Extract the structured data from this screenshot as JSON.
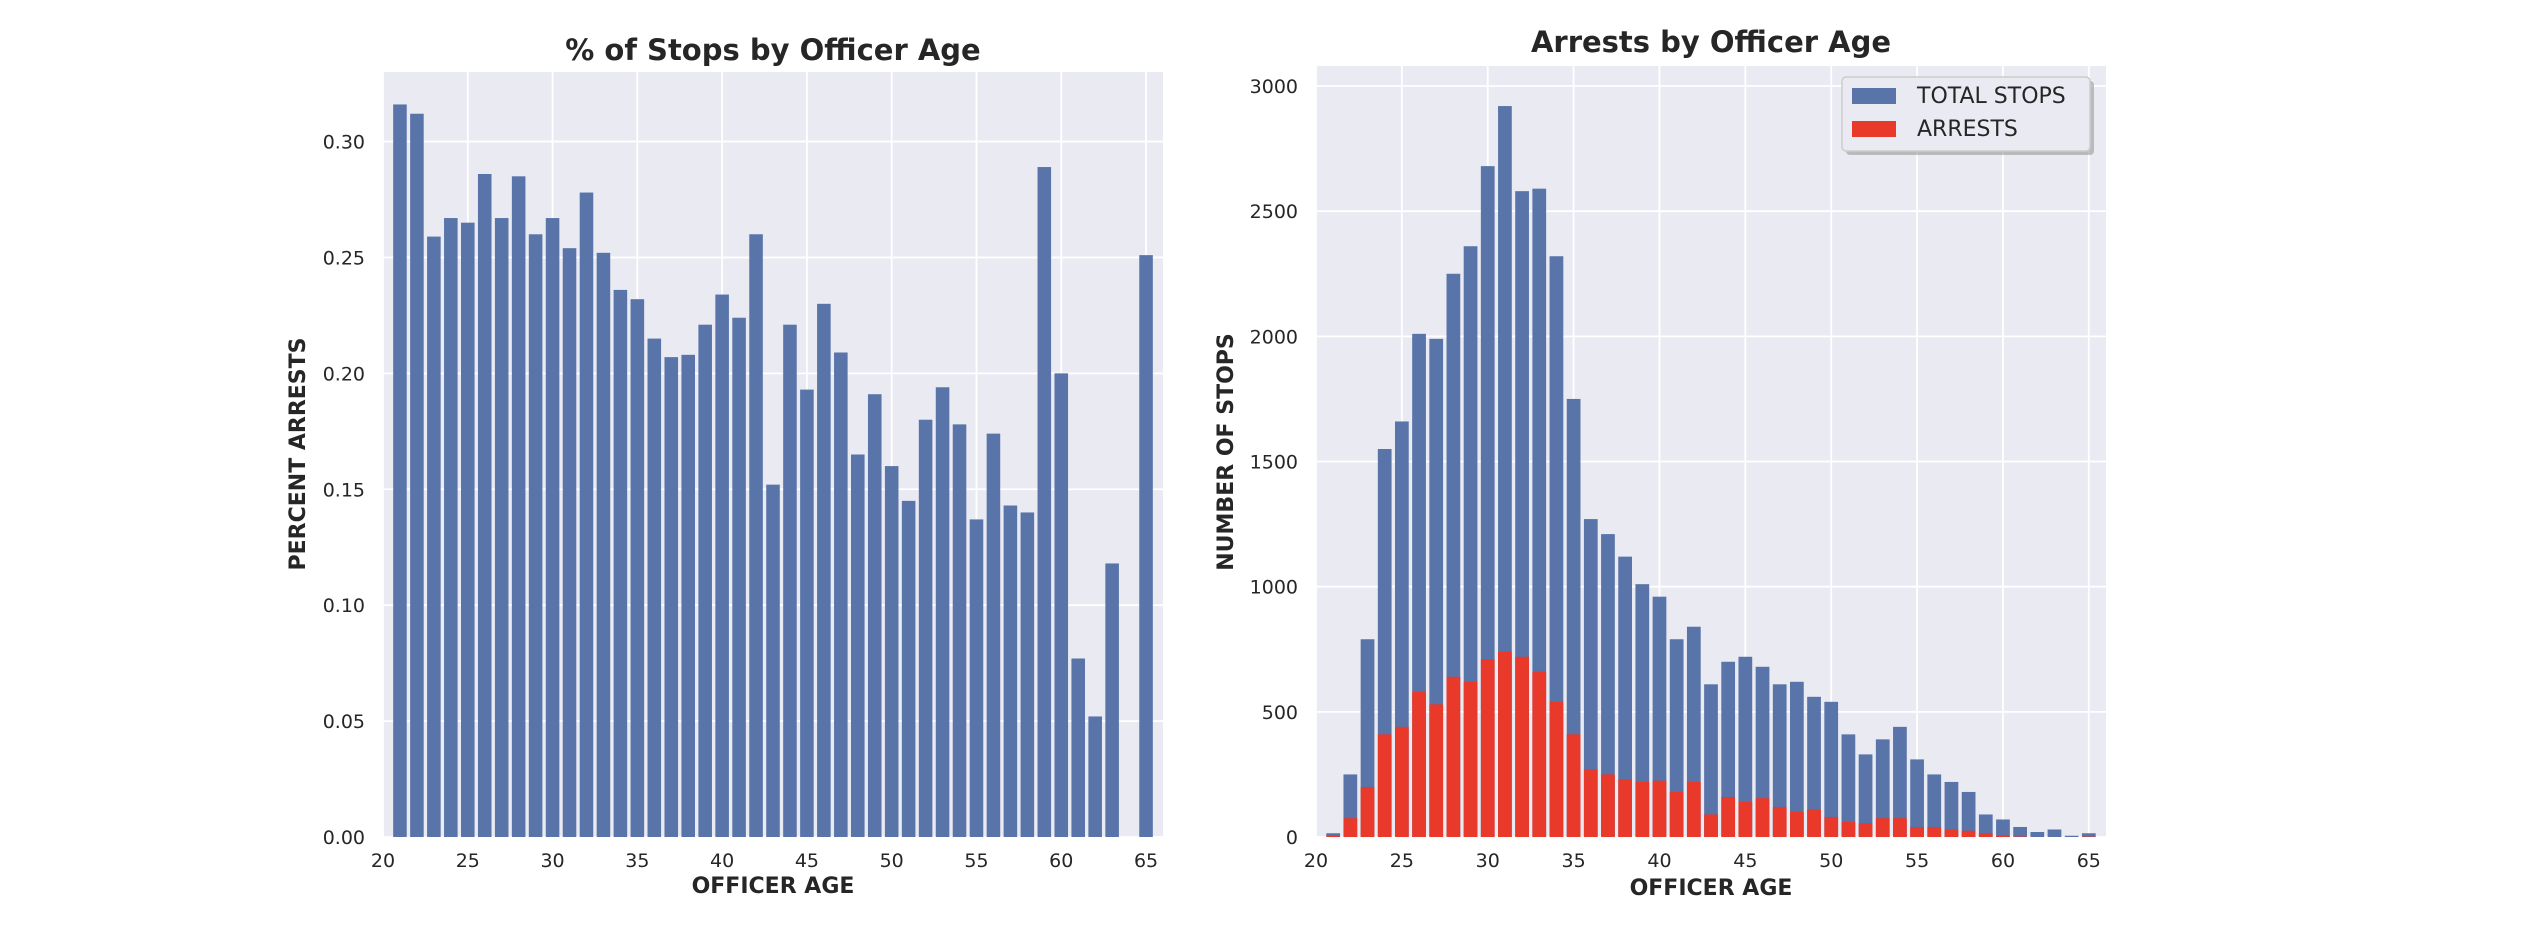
{
  "chart_data": [
    {
      "type": "bar",
      "title": "% of Stops by Officer Age",
      "xlabel": "OFFICER AGE",
      "ylabel": "PERCENT ARRESTS",
      "xlim": [
        20,
        66
      ],
      "ylim": [
        0,
        0.33
      ],
      "xticks": [
        20,
        25,
        30,
        35,
        40,
        45,
        50,
        55,
        60,
        65
      ],
      "xtick_labels": [
        "20",
        "25",
        "30",
        "35",
        "40",
        "45",
        "50",
        "55",
        "60",
        "65"
      ],
      "yticks": [
        0.0,
        0.05,
        0.1,
        0.15,
        0.2,
        0.25,
        0.3
      ],
      "ytick_labels": [
        "0.00",
        "0.05",
        "0.10",
        "0.15",
        "0.20",
        "0.25",
        "0.30"
      ],
      "grid": true,
      "bar_color": "#5874a8",
      "x": [
        21,
        22,
        23,
        24,
        25,
        26,
        27,
        28,
        29,
        30,
        31,
        32,
        33,
        34,
        35,
        36,
        37,
        38,
        39,
        40,
        41,
        42,
        43,
        44,
        45,
        46,
        47,
        48,
        49,
        50,
        51,
        52,
        53,
        54,
        55,
        56,
        57,
        58,
        59,
        60,
        61,
        62,
        63,
        65
      ],
      "values": [
        0.316,
        0.312,
        0.259,
        0.267,
        0.265,
        0.286,
        0.267,
        0.285,
        0.26,
        0.267,
        0.254,
        0.278,
        0.252,
        0.236,
        0.232,
        0.215,
        0.207,
        0.208,
        0.221,
        0.234,
        0.224,
        0.26,
        0.152,
        0.221,
        0.193,
        0.23,
        0.209,
        0.165,
        0.191,
        0.16,
        0.145,
        0.18,
        0.194,
        0.178,
        0.137,
        0.174,
        0.143,
        0.14,
        0.289,
        0.2,
        0.077,
        0.052,
        0.118,
        0.251
      ]
    },
    {
      "type": "bar",
      "title": "Arrests by Officer Age",
      "xlabel": "OFFICER AGE",
      "ylabel": "NUMBER OF STOPS",
      "xlim": [
        20,
        66
      ],
      "ylim": [
        0,
        3080
      ],
      "xticks": [
        20,
        25,
        30,
        35,
        40,
        45,
        50,
        55,
        60,
        65
      ],
      "xtick_labels": [
        "20",
        "25",
        "30",
        "35",
        "40",
        "45",
        "50",
        "55",
        "60",
        "65"
      ],
      "yticks": [
        0,
        500,
        1000,
        1500,
        2000,
        2500,
        3000
      ],
      "ytick_labels": [
        "0",
        "500",
        "1000",
        "1500",
        "2000",
        "2500",
        "3000"
      ],
      "grid": true,
      "legend_position": "top-right",
      "x": [
        21,
        22,
        23,
        24,
        25,
        26,
        27,
        28,
        29,
        30,
        31,
        32,
        33,
        34,
        35,
        36,
        37,
        38,
        39,
        40,
        41,
        42,
        43,
        44,
        45,
        46,
        47,
        48,
        49,
        50,
        51,
        52,
        53,
        54,
        55,
        56,
        57,
        58,
        59,
        60,
        61,
        62,
        63,
        64,
        65
      ],
      "series": [
        {
          "name": "TOTAL STOPS",
          "color": "#5874a8",
          "values": [
            15,
            250,
            790,
            1550,
            1660,
            2010,
            1990,
            2250,
            2360,
            2680,
            2920,
            2580,
            2590,
            2320,
            1750,
            1270,
            1210,
            1120,
            1010,
            960,
            790,
            840,
            610,
            700,
            720,
            680,
            610,
            620,
            560,
            540,
            410,
            330,
            390,
            440,
            310,
            250,
            220,
            180,
            90,
            70,
            40,
            20,
            30,
            5,
            15
          ]
        },
        {
          "name": "ARRESTS",
          "color": "#e8392a",
          "values": [
            5,
            75,
            200,
            410,
            440,
            580,
            530,
            640,
            620,
            710,
            740,
            720,
            660,
            540,
            410,
            270,
            250,
            230,
            220,
            225,
            180,
            220,
            90,
            160,
            140,
            155,
            120,
            100,
            110,
            80,
            60,
            55,
            75,
            75,
            40,
            40,
            30,
            25,
            15,
            5,
            2,
            0,
            0,
            0,
            2
          ]
        }
      ]
    }
  ]
}
